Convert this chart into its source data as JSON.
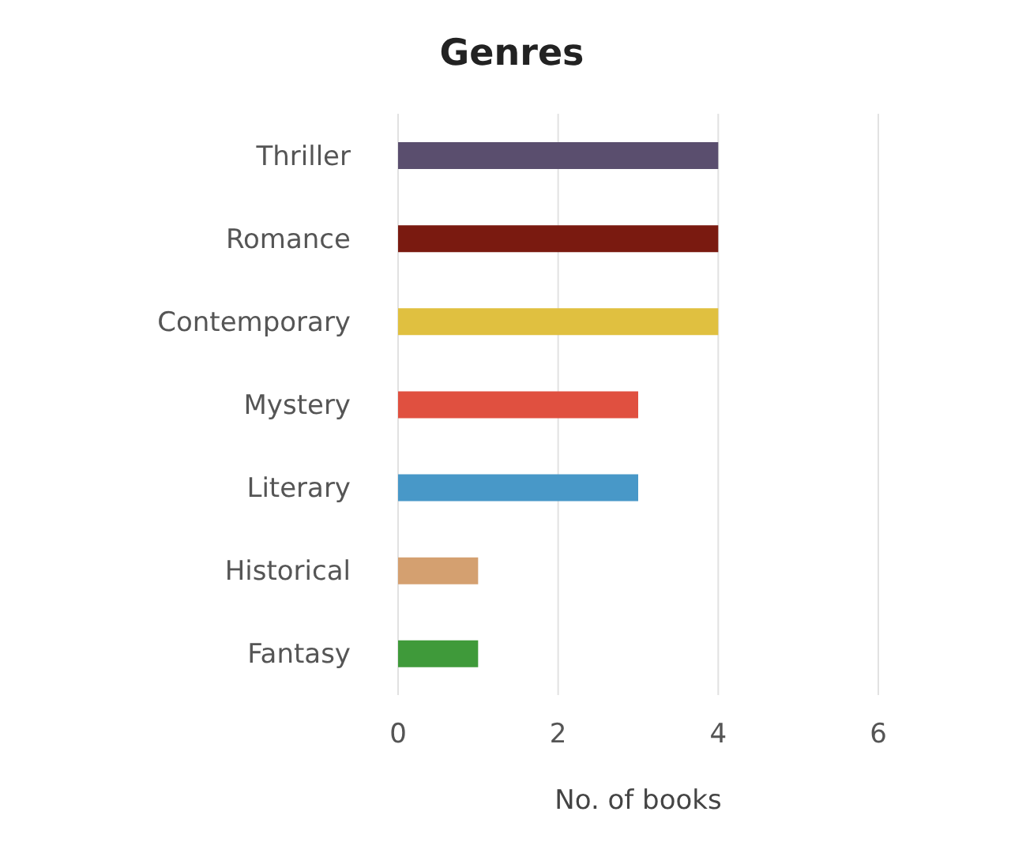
{
  "chart_data": {
    "type": "bar",
    "orientation": "horizontal",
    "title": "Genres",
    "xlabel": "No. of books",
    "categories": [
      "Thriller",
      "Romance",
      "Contemporary",
      "Mystery",
      "Literary",
      "Historical",
      "Fantasy"
    ],
    "values": [
      4,
      4,
      4,
      3,
      3,
      1,
      1
    ],
    "colors": [
      "#5a4e6e",
      "#7a1a10",
      "#e0c040",
      "#e05040",
      "#4898c8",
      "#d4a070",
      "#3f9a3a"
    ],
    "xlim": [
      0,
      6
    ],
    "xticks": [
      0,
      2,
      4,
      6
    ],
    "grid": "x",
    "legend": false
  }
}
